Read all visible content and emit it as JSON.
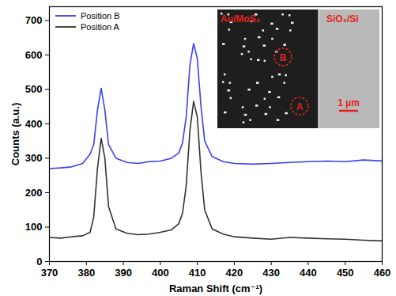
{
  "chart_data": {
    "type": "line",
    "x_label": "Raman Shift (cm⁻¹)",
    "y_label": "Counts (a.u.)",
    "x": [
      370,
      373,
      376,
      379,
      381,
      382,
      383,
      384,
      385,
      386,
      388,
      391,
      394,
      397,
      400,
      403,
      405,
      406,
      407,
      408,
      409,
      410,
      411,
      412,
      414,
      417,
      420,
      425,
      430,
      435,
      440,
      445,
      450,
      455,
      460
    ],
    "series": [
      {
        "name": "Position B",
        "color": "#3b3ff2",
        "values": [
          270,
          272,
          275,
          285,
          312,
          340,
          440,
          503,
          440,
          340,
          300,
          288,
          285,
          290,
          292,
          300,
          315,
          345,
          420,
          570,
          633,
          590,
          450,
          350,
          305,
          290,
          285,
          283,
          285,
          288,
          290,
          292,
          290,
          295,
          292
        ]
      },
      {
        "name": "Position A",
        "color": "#333333",
        "values": [
          70,
          68,
          72,
          75,
          85,
          130,
          270,
          358,
          300,
          160,
          95,
          82,
          78,
          80,
          85,
          92,
          110,
          140,
          220,
          380,
          465,
          420,
          260,
          150,
          95,
          80,
          72,
          68,
          65,
          70,
          68,
          66,
          65,
          62,
          60
        ]
      }
    ],
    "xlim": [
      370,
      460
    ],
    "xticks": [
      370,
      380,
      390,
      400,
      410,
      420,
      430,
      440,
      450,
      460
    ],
    "ylim": [
      0,
      740
    ],
    "yticks": [
      0,
      100,
      200,
      300,
      400,
      500,
      600,
      700
    ],
    "grid": false,
    "legend": "upper left",
    "annotations": [
      "Au/MoS₂",
      "SiO₂/Si",
      "B",
      "A",
      "1 µm"
    ]
  }
}
